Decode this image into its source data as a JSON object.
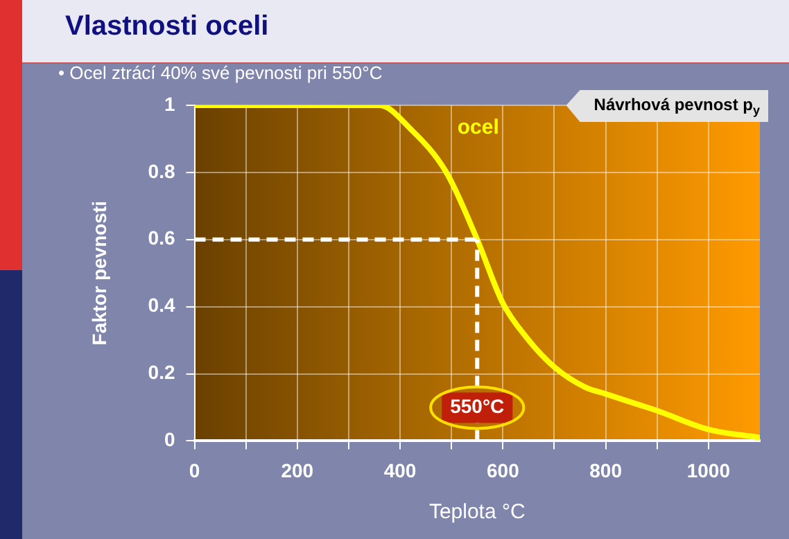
{
  "chart_data": {
    "type": "line",
    "title": "Vlastnosti oceli",
    "subtitle": "• Ocel ztrácí 40% své pevnosti pri 550°C",
    "xlabel": "Teplota °C",
    "ylabel": "Faktor pevnosti",
    "series": [
      {
        "name": "ocel",
        "color": "#ffff00",
        "x": [
          0,
          360,
          420,
          490,
          550,
          600,
          645,
          700,
          760,
          800,
          860,
          900,
          1000,
          1100
        ],
        "values": [
          1,
          1,
          0.93,
          0.8,
          0.6,
          0.41,
          0.31,
          0.22,
          0.16,
          0.14,
          0.11,
          0.09,
          0.034,
          0.01
        ]
      }
    ],
    "xlim": [
      0,
      1100
    ],
    "xticks": [
      0,
      {
        "value": 100,
        "label": null
      },
      200,
      {
        "value": 300,
        "label": null
      },
      400,
      {
        "value": 500,
        "label": null
      },
      600,
      {
        "value": 700,
        "label": null
      },
      800,
      {
        "value": 900,
        "label": null
      },
      1000
    ],
    "ylim": [
      0,
      1
    ],
    "yticks": [
      0,
      0.2,
      0.4,
      0.6,
      0.8,
      1
    ],
    "grid": true,
    "legend": false,
    "marker": "none",
    "line_style": "solid",
    "ref_lines": [
      {
        "axis": "y",
        "value": 0.6,
        "color": "#ffffff",
        "line_style": "dashed"
      },
      {
        "axis": "x",
        "value": 550,
        "label": "550°C",
        "color": "#ffffff",
        "line_style": "dashed"
      }
    ],
    "annotations": [
      "Návrhová pevnost p$_{y}$"
    ]
  }
}
